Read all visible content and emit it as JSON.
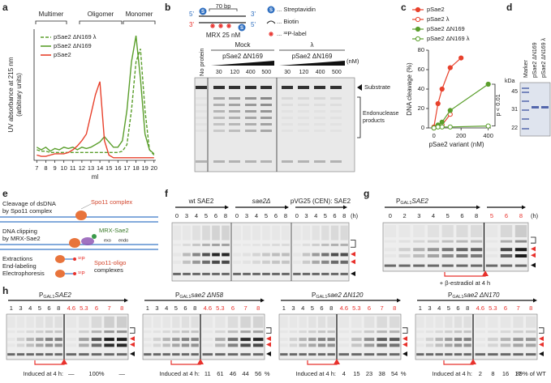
{
  "panel_letters": [
    "a",
    "b",
    "c",
    "d",
    "e",
    "f",
    "g",
    "h"
  ],
  "chart_data": [
    {
      "type": "line",
      "x_label": "ml",
      "y_label": [
        "UV absorbance at 215 nm",
        "(arbitrary units)"
      ],
      "annotations": [
        "Multimer",
        "Oligomer",
        "Monomer"
      ],
      "x": [
        7,
        7.5,
        8,
        8.5,
        9,
        9.5,
        10,
        10.5,
        11,
        11.5,
        12,
        12.5,
        13,
        13.5,
        14,
        14.5,
        15,
        15.5,
        16,
        16.5,
        17,
        17.5,
        18,
        18.5,
        19,
        19.5,
        20
      ],
      "xlim": [
        6.7,
        20.2
      ],
      "xticks": [
        7,
        8,
        9,
        10,
        11,
        12,
        13,
        14,
        15,
        16,
        17,
        18,
        19,
        20
      ],
      "ylim": [
        0,
        1
      ],
      "legend": "upper left",
      "series": [
        {
          "name": "pSae2 ΔN169 λ",
          "color": "#5a9e2b",
          "line_style": "dashed",
          "values": [
            0.08,
            0.07,
            0.07,
            0.06,
            0.06,
            0.06,
            0.06,
            0.06,
            0.06,
            0.06,
            0.06,
            0.06,
            0.06,
            0.06,
            0.06,
            0.06,
            0.06,
            0.06,
            0.06,
            0.07,
            0.12,
            0.38,
            0.75,
            0.85,
            0.38,
            0.08,
            0.04
          ]
        },
        {
          "name": "pSae2 ΔN169",
          "color": "#5a9e2b",
          "line_style": "solid",
          "values": [
            0.1,
            0.08,
            0.1,
            0.07,
            0.09,
            0.08,
            0.1,
            0.09,
            0.1,
            0.08,
            0.1,
            0.09,
            0.1,
            0.12,
            0.14,
            0.18,
            0.14,
            0.1,
            0.1,
            0.15,
            0.38,
            0.75,
            0.95,
            0.62,
            0.2,
            0.08,
            0.05
          ]
        },
        {
          "name": "pSae2",
          "color": "#e8412c",
          "line_style": "solid",
          "values": [
            0.04,
            0.03,
            0.03,
            0.04,
            0.05,
            0.05,
            0.05,
            0.06,
            0.08,
            0.11,
            0.15,
            0.2,
            0.35,
            0.5,
            0.6,
            0.15,
            0.04,
            0.02,
            0.02,
            0.02,
            0.02,
            0.02,
            0.02,
            0.02,
            0.02,
            0.02,
            0.02
          ]
        }
      ]
    },
    {
      "type": "line",
      "markers": true,
      "x_label": "pSae2 variant (nM)",
      "y_label": "DNA cleavage (%)",
      "annotation": "p < 0.01",
      "xlim": [
        -40,
        420
      ],
      "xticks": [
        0,
        200,
        400
      ],
      "ylim": [
        0,
        80
      ],
      "yticks": [
        0,
        20,
        40,
        60,
        80
      ],
      "legend": "upper left",
      "series": [
        {
          "name": "pSae2",
          "color": "#e8412c",
          "marker": "filled",
          "x": [
            0,
            30,
            60,
            120,
            200
          ],
          "values": [
            1,
            25,
            40,
            62,
            72
          ]
        },
        {
          "name": "pSae2 λ",
          "color": "#e8412c",
          "marker": "open",
          "x": [
            0,
            30,
            60,
            120
          ],
          "values": [
            0,
            2,
            3,
            14
          ]
        },
        {
          "name": "pSae2 ΔN169",
          "color": "#5a9e2b",
          "marker": "filled",
          "x": [
            0,
            30,
            60,
            120,
            400
          ],
          "values": [
            0,
            3,
            6,
            18,
            45
          ]
        },
        {
          "name": "pSae2 ΔN169 λ",
          "color": "#5a9e2b",
          "marker": "open",
          "x": [
            0,
            30,
            60,
            120,
            400
          ],
          "values": [
            0,
            1,
            1,
            1,
            2
          ]
        }
      ]
    }
  ],
  "panel_b": {
    "length": "70 bp",
    "ends_top": [
      "5'",
      "3'"
    ],
    "ends_bottom": [
      "3'",
      "5'"
    ],
    "protein": "MRX 25 nM",
    "key_symbol": "S",
    "key": [
      "... Streptavidin",
      "... Biotin",
      "... ³²P-label"
    ],
    "no_protein": "No protein",
    "groups": [
      {
        "name": "Mock",
        "protein": "pSae2 ΔN169",
        "conc": [
          30,
          120,
          400,
          500
        ]
      },
      {
        "name": "λ",
        "protein": "pSae2 ΔN169",
        "conc": [
          30,
          120,
          400,
          500
        ]
      }
    ],
    "unit": "(nM)",
    "substrate": "Substrate",
    "products": [
      "Endonuclease",
      "products"
    ]
  },
  "panel_d": {
    "unit": "kDa",
    "markers": [
      45,
      31,
      22
    ],
    "lanes": [
      "Marker",
      "pSae2 ΔN169",
      "pSae2 ΔN169 λ"
    ]
  },
  "panel_e": {
    "steps": [
      [
        "Cleavage of dsDNA",
        "by Spo11 complex"
      ],
      [
        "DNA clipping",
        "by MRX-Sae2"
      ],
      [
        "Extractions",
        "End-labeling",
        "Electrophoresis"
      ]
    ],
    "spo11": "Spo11 complex",
    "mrx": "MRX-Sae2",
    "exo": "exo",
    "endo": "endo",
    "oligo": [
      "Spo11-oligo",
      "complexes"
    ],
    "label": "³²P"
  },
  "panel_f": {
    "strains": [
      "wt SAE2",
      "sae2Δ",
      "pVG25 (CEN): SAE2"
    ],
    "times": [
      0,
      3,
      4,
      5,
      6,
      8
    ],
    "unit": "(h)"
  },
  "panel_g": {
    "gene": "SAE2",
    "times": [
      0,
      2,
      3,
      4,
      5,
      6,
      8
    ],
    "times_induced": [
      5,
      6,
      8
    ],
    "unit": "(h)",
    "treatment": "+ β-estradiol at 4 h"
  },
  "promoter": {
    "p": "P",
    "sub": "GAL1"
  },
  "panel_h": {
    "times": [
      1,
      3,
      4,
      5,
      6,
      8
    ],
    "times_induced": [
      4.6,
      5.3,
      6,
      7,
      8
    ],
    "induced_label": "Induced at 4 h:",
    "strains": [
      {
        "gene": "SAE2",
        "levels": [
          "—",
          "100%",
          "—"
        ]
      },
      {
        "gene": "sae2 ΔN58",
        "levels": [
          11,
          61,
          46,
          44,
          56,
          "%"
        ]
      },
      {
        "gene": "sae2 ΔN120",
        "levels": [
          4,
          15,
          23,
          38,
          54,
          "%"
        ]
      },
      {
        "gene": "sae2 ΔN170",
        "levels": [
          2,
          8,
          16,
          17,
          "39% of WT"
        ]
      }
    ]
  }
}
